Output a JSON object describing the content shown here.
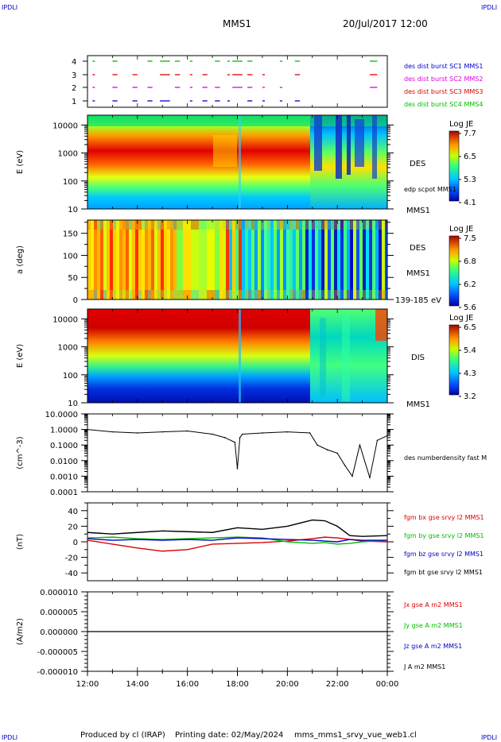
{
  "header": {
    "corner_label": "IPDLI",
    "title": "MMS1",
    "datetime": "20/Jul/2017 12:00"
  },
  "footer": {
    "produced_by": "Produced by cl (IRAP)",
    "printing_date": "Printing date: 02/May/2024",
    "file_name": "mms_mms1_srvy_vue_web1.cl"
  },
  "colors": {
    "red": "#dd0000",
    "green": "#00bb00",
    "blue": "#0000cc",
    "magenta": "#dd00dd",
    "black": "#000000"
  },
  "chart_data": [
    {
      "type": "scatter",
      "id": "burst",
      "yticks": [
        "1",
        "2",
        "3",
        "4"
      ],
      "legend": [
        "des dist burst SC1 MMS1",
        "des dist burst SC2 MMS2",
        "des dist burst SC3 MMS3",
        "des dist burst SC4 MMS4"
      ],
      "legend_colors": [
        "#0000cc",
        "#dd00dd",
        "#dd0000",
        "#00bb00"
      ]
    },
    {
      "type": "heatmap",
      "id": "des_energy",
      "ylabel": "E (eV)",
      "yticks": [
        "10",
        "100",
        "1000",
        "10000"
      ],
      "right_labels": [
        "DES",
        "edp scpot MMS1",
        "MMS1"
      ],
      "colorbar": {
        "title": "Log JE",
        "ticks": [
          "7.7",
          "6.5",
          "5.3",
          "4.1"
        ]
      }
    },
    {
      "type": "heatmap",
      "id": "des_pitch",
      "ylabel": "a (deg)",
      "yticks": [
        "0",
        "50",
        "100",
        "150"
      ],
      "right_labels": [
        "DES",
        "MMS1",
        "139-185 eV"
      ],
      "colorbar": {
        "title": "Log JE",
        "ticks": [
          "7.5",
          "6.8",
          "6.2",
          "5.6"
        ]
      }
    },
    {
      "type": "heatmap",
      "id": "dis_energy",
      "ylabel": "E (eV)",
      "yticks": [
        "10",
        "100",
        "1000",
        "10000"
      ],
      "right_labels": [
        "DIS",
        "MMS1"
      ],
      "colorbar": {
        "title": "Log JE",
        "ticks": [
          "6.5",
          "5.4",
          "4.3",
          "3.2"
        ]
      }
    },
    {
      "type": "line",
      "id": "density",
      "ylabel": "(cm^-3)",
      "yticks": [
        "0.0001",
        "0.0010",
        "0.0100",
        "0.1000",
        "1.0000",
        "10.0000"
      ],
      "legend": [
        "des numberdensity fast M"
      ],
      "legend_colors": [
        "#000000"
      ],
      "x": [
        12.0,
        13.0,
        14.0,
        15.0,
        16.0,
        17.0,
        17.5,
        17.9,
        18.0,
        18.1,
        18.2,
        19.0,
        20.0,
        20.9,
        21.2,
        21.6,
        22.0,
        22.3,
        22.6,
        22.9,
        23.3,
        23.6,
        24.0
      ],
      "values": [
        1.0,
        0.7,
        0.6,
        0.7,
        0.8,
        0.5,
        0.3,
        0.15,
        0.003,
        0.3,
        0.5,
        0.6,
        0.7,
        0.6,
        0.1,
        0.05,
        0.03,
        0.005,
        0.001,
        0.1,
        0.0008,
        0.2,
        0.4
      ],
      "ylim": [
        0.0001,
        10
      ]
    },
    {
      "type": "line",
      "id": "fgm",
      "ylabel": "(nT)",
      "yticks": [
        "-40",
        "-20",
        "0",
        "20",
        "40"
      ],
      "ylim": [
        -50,
        50
      ],
      "legend": [
        "fgm bx gse srvy l2 MMS1",
        "fgm by gse srvy l2 MMS1",
        "fgm bz gse srvy l2 MMS1",
        "fgm bt gse srvy l2 MMS1"
      ],
      "legend_colors": [
        "#dd0000",
        "#00bb00",
        "#0000cc",
        "#000000"
      ],
      "x": [
        12.0,
        13.0,
        14.0,
        15.0,
        16.0,
        17.0,
        18.0,
        19.0,
        20.0,
        21.0,
        21.5,
        22.0,
        22.5,
        23.0,
        24.0
      ],
      "series": [
        {
          "name": "bx",
          "values": [
            2,
            -3,
            -8,
            -12,
            -10,
            -3,
            -2,
            -1,
            1,
            4,
            6,
            5,
            3,
            1,
            0
          ]
        },
        {
          "name": "by",
          "values": [
            5,
            6,
            4,
            3,
            4,
            5,
            6,
            5,
            0,
            -2,
            -1,
            -3,
            -2,
            0,
            2
          ]
        },
        {
          "name": "bz",
          "values": [
            4,
            2,
            3,
            2,
            3,
            2,
            5,
            4,
            3,
            2,
            1,
            0,
            3,
            2,
            2
          ]
        },
        {
          "name": "bt",
          "values": [
            12,
            10,
            12,
            14,
            13,
            12,
            18,
            16,
            20,
            28,
            27,
            20,
            8,
            7,
            8
          ]
        }
      ]
    },
    {
      "type": "line",
      "id": "current",
      "ylabel": "(A/m2)",
      "yticks": [
        "-0.000010",
        "-0.000005",
        "0.000000",
        "0.000005",
        "0.000010"
      ],
      "ylim": [
        -1e-05,
        1e-05
      ],
      "legend": [
        "Jx gse A m2 MMS1",
        "Jy gse A m2 MMS1",
        "Jz gse A m2 MMS1",
        "J A m2 MMS1"
      ],
      "legend_colors": [
        "#dd0000",
        "#00bb00",
        "#0000cc",
        "#000000"
      ],
      "x": [
        12.0,
        24.0
      ],
      "values": [
        0.0,
        0.0
      ]
    }
  ],
  "x_axis": {
    "ticks": [
      "12:00",
      "14:00",
      "16:00",
      "18:00",
      "20:00",
      "22:00",
      "00:00"
    ],
    "xlim": [
      12,
      24
    ]
  }
}
